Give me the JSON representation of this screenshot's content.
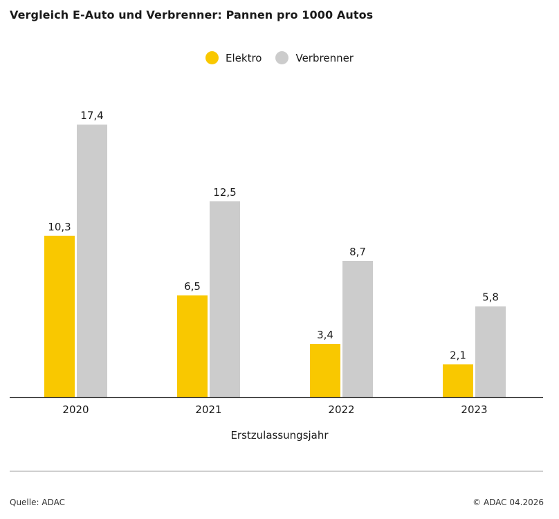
{
  "chart_data": {
    "type": "bar",
    "title": "Vergleich E-Auto und Verbrenner: Pannen pro 1000 Autos",
    "xlabel": "Erstzulassungsjahr",
    "ylabel": "",
    "categories": [
      "2020",
      "2021",
      "2022",
      "2023"
    ],
    "series": [
      {
        "name": "Elektro",
        "color": "#f9c800",
        "values": [
          10.3,
          6.5,
          3.4,
          2.1
        ],
        "labels": [
          "10,3",
          "6,5",
          "3,4",
          "2,1"
        ]
      },
      {
        "name": "Verbrenner",
        "color": "#cccccc",
        "values": [
          17.4,
          12.5,
          8.7,
          5.8
        ],
        "labels": [
          "17,4",
          "12,5",
          "8,7",
          "5,8"
        ]
      }
    ],
    "ylim": [
      0,
      17.4
    ],
    "grid": false,
    "legend_position": "top-center"
  },
  "footer": {
    "source": "Quelle: ADAC",
    "copyright": "© ADAC 04.2026"
  }
}
